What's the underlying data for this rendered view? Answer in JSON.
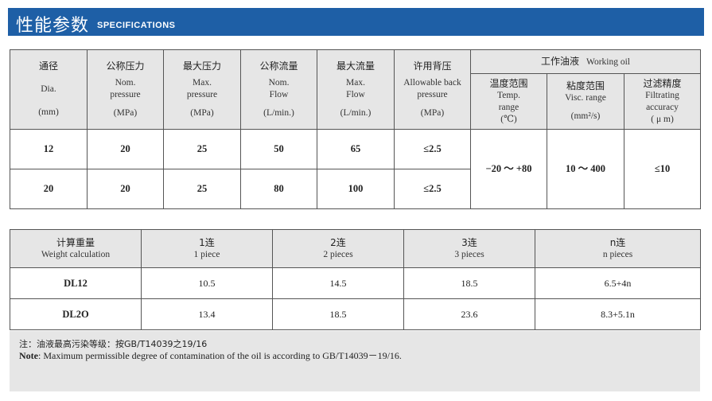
{
  "header": {
    "title_zh": "性能参数",
    "title_en": "SPECIFICATIONS"
  },
  "spec_table": {
    "columns": [
      {
        "zh": "通径",
        "en": "Dia.",
        "unit": "(mm)"
      },
      {
        "zh": "公称压力",
        "en": "Nom. pressure",
        "unit": "(MPa)"
      },
      {
        "zh": "最大压力",
        "en": "Max. pressure",
        "unit": "(MPa)"
      },
      {
        "zh": "公称流量",
        "en": "Nom. Flow",
        "unit": "(L/min.)"
      },
      {
        "zh": "最大流量",
        "en": "Max. Flow",
        "unit": "(L/min.)"
      },
      {
        "zh": "许用背压",
        "en": "Allowable back pressure",
        "unit": "(MPa)"
      }
    ],
    "oil_group": {
      "zh": "工作油液",
      "en": "Working oil"
    },
    "oil_columns": [
      {
        "zh": "温度范围",
        "en": "Temp. range",
        "unit": "(℃)"
      },
      {
        "zh": "粘度范围",
        "en": "Visc. range",
        "unit": "(mm²/s)"
      },
      {
        "zh": "过滤精度",
        "en": "Filtrating accuracy",
        "unit": "( μ m)"
      }
    ],
    "rows": [
      {
        "dia": "12",
        "nom_pressure": "20",
        "max_pressure": "25",
        "nom_flow": "50",
        "max_flow": "65",
        "back_pressure": "≤2.5"
      },
      {
        "dia": "20",
        "nom_pressure": "20",
        "max_pressure": "25",
        "nom_flow": "80",
        "max_flow": "100",
        "back_pressure": "≤2.5"
      }
    ],
    "oil_values": {
      "temp": "−20 ～ +80",
      "visc": "10 ～ 400",
      "filter": "≤10"
    }
  },
  "weight_table": {
    "header": {
      "zh": "计算重量",
      "en": "Weight calculation"
    },
    "columns": [
      {
        "zh": "1连",
        "en": "1 piece"
      },
      {
        "zh": "2连",
        "en": "2 pieces"
      },
      {
        "zh": "3连",
        "en": "3 pieces"
      },
      {
        "zh": "n连",
        "en": "n pieces"
      }
    ],
    "rows": [
      {
        "model": "DL12",
        "v1": "10.5",
        "v2": "14.5",
        "v3": "18.5",
        "vn": "6.5+4n"
      },
      {
        "model": "DL2O",
        "v1": "13.4",
        "v2": "18.5",
        "v3": "23.6",
        "vn": "8.3+5.1n"
      }
    ]
  },
  "note": {
    "zh": "注：油液最高污染等级：按GB/T14039之19/16",
    "en_label": "Note",
    "en_text": ": Maximum permissible degree of contamination of the oil is according to GB/T14039－19/16."
  },
  "colors": {
    "title_bar": "#1e5fa6",
    "header_bg": "#e6e6e6",
    "border": "#555555"
  }
}
